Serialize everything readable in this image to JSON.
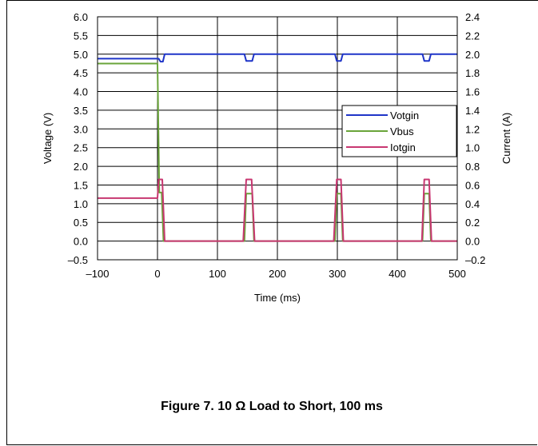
{
  "chart_data": {
    "type": "line",
    "title": "",
    "xlabel": "Time (ms)",
    "ylabel": "Voltage (V)",
    "y2label": "Current (A)",
    "xlim": [
      -100,
      500
    ],
    "ylim": [
      -0.5,
      6.0
    ],
    "y2lim": [
      -0.2,
      2.4
    ],
    "grid": true,
    "legend_position": "right-middle",
    "x_ticks": [
      "–100",
      "0",
      "100",
      "200",
      "300",
      "400",
      "500"
    ],
    "x_tick_values": [
      -100,
      0,
      100,
      200,
      300,
      400,
      500
    ],
    "y_ticks": [
      "–0.5",
      "0.0",
      "0.5",
      "1.0",
      "1.5",
      "2.0",
      "2.5",
      "3.0",
      "3.5",
      "4.0",
      "4.5",
      "5.0",
      "5.5",
      "6.0"
    ],
    "y_tick_values": [
      -0.5,
      0,
      0.5,
      1,
      1.5,
      2,
      2.5,
      3,
      3.5,
      4,
      4.5,
      5,
      5.5,
      6
    ],
    "y2_ticks": [
      "–0.2",
      "0.0",
      "0.2",
      "0.4",
      "0.6",
      "0.8",
      "1.0",
      "1.2",
      "1.4",
      "1.6",
      "1.8",
      "2.0",
      "2.2",
      "2.4"
    ],
    "y2_tick_values": [
      -0.2,
      0,
      0.2,
      0.4,
      0.6,
      0.8,
      1.0,
      1.2,
      1.4,
      1.6,
      1.8,
      2.0,
      2.2,
      2.4
    ],
    "series": [
      {
        "name": "Votgin",
        "axis": "left",
        "color": "#1f35c8",
        "points": [
          [
            -100,
            4.88
          ],
          [
            2,
            4.88
          ],
          [
            5,
            4.8
          ],
          [
            9,
            4.8
          ],
          [
            12,
            5.0
          ],
          [
            145,
            5.0
          ],
          [
            148,
            4.82
          ],
          [
            158,
            4.82
          ],
          [
            161,
            5.0
          ],
          [
            296,
            5.0
          ],
          [
            299,
            4.82
          ],
          [
            306,
            4.82
          ],
          [
            309,
            5.0
          ],
          [
            442,
            5.0
          ],
          [
            445,
            4.82
          ],
          [
            453,
            4.82
          ],
          [
            456,
            5.0
          ],
          [
            500,
            5.0
          ]
        ]
      },
      {
        "name": "Vbus",
        "axis": "left",
        "color": "#6aa43a",
        "points": [
          [
            -100,
            4.75
          ],
          [
            0,
            4.75
          ],
          [
            3,
            1.3
          ],
          [
            7,
            1.3
          ],
          [
            10,
            0.0
          ],
          [
            145,
            0.0
          ],
          [
            148,
            1.27
          ],
          [
            158,
            1.27
          ],
          [
            161,
            0.0
          ],
          [
            296,
            0.0
          ],
          [
            299,
            1.27
          ],
          [
            306,
            1.27
          ],
          [
            309,
            0.0
          ],
          [
            442,
            0.0
          ],
          [
            445,
            1.27
          ],
          [
            453,
            1.27
          ],
          [
            456,
            0.0
          ],
          [
            500,
            0.0
          ]
        ]
      },
      {
        "name": "Iotgin",
        "axis": "right",
        "color": "#c83771",
        "points": [
          [
            -100,
            0.46
          ],
          [
            0,
            0.46
          ],
          [
            2,
            0.66
          ],
          [
            8,
            0.66
          ],
          [
            12,
            0.0
          ],
          [
            143,
            0.0
          ],
          [
            148,
            0.66
          ],
          [
            157,
            0.66
          ],
          [
            162,
            0.0
          ],
          [
            294,
            0.0
          ],
          [
            299,
            0.66
          ],
          [
            306,
            0.66
          ],
          [
            310,
            0.0
          ],
          [
            441,
            0.0
          ],
          [
            445,
            0.66
          ],
          [
            453,
            0.66
          ],
          [
            457,
            0.0
          ],
          [
            500,
            0.0
          ]
        ]
      }
    ]
  },
  "caption": "Figure 7. 10 Ω Load to Short, 100 ms"
}
